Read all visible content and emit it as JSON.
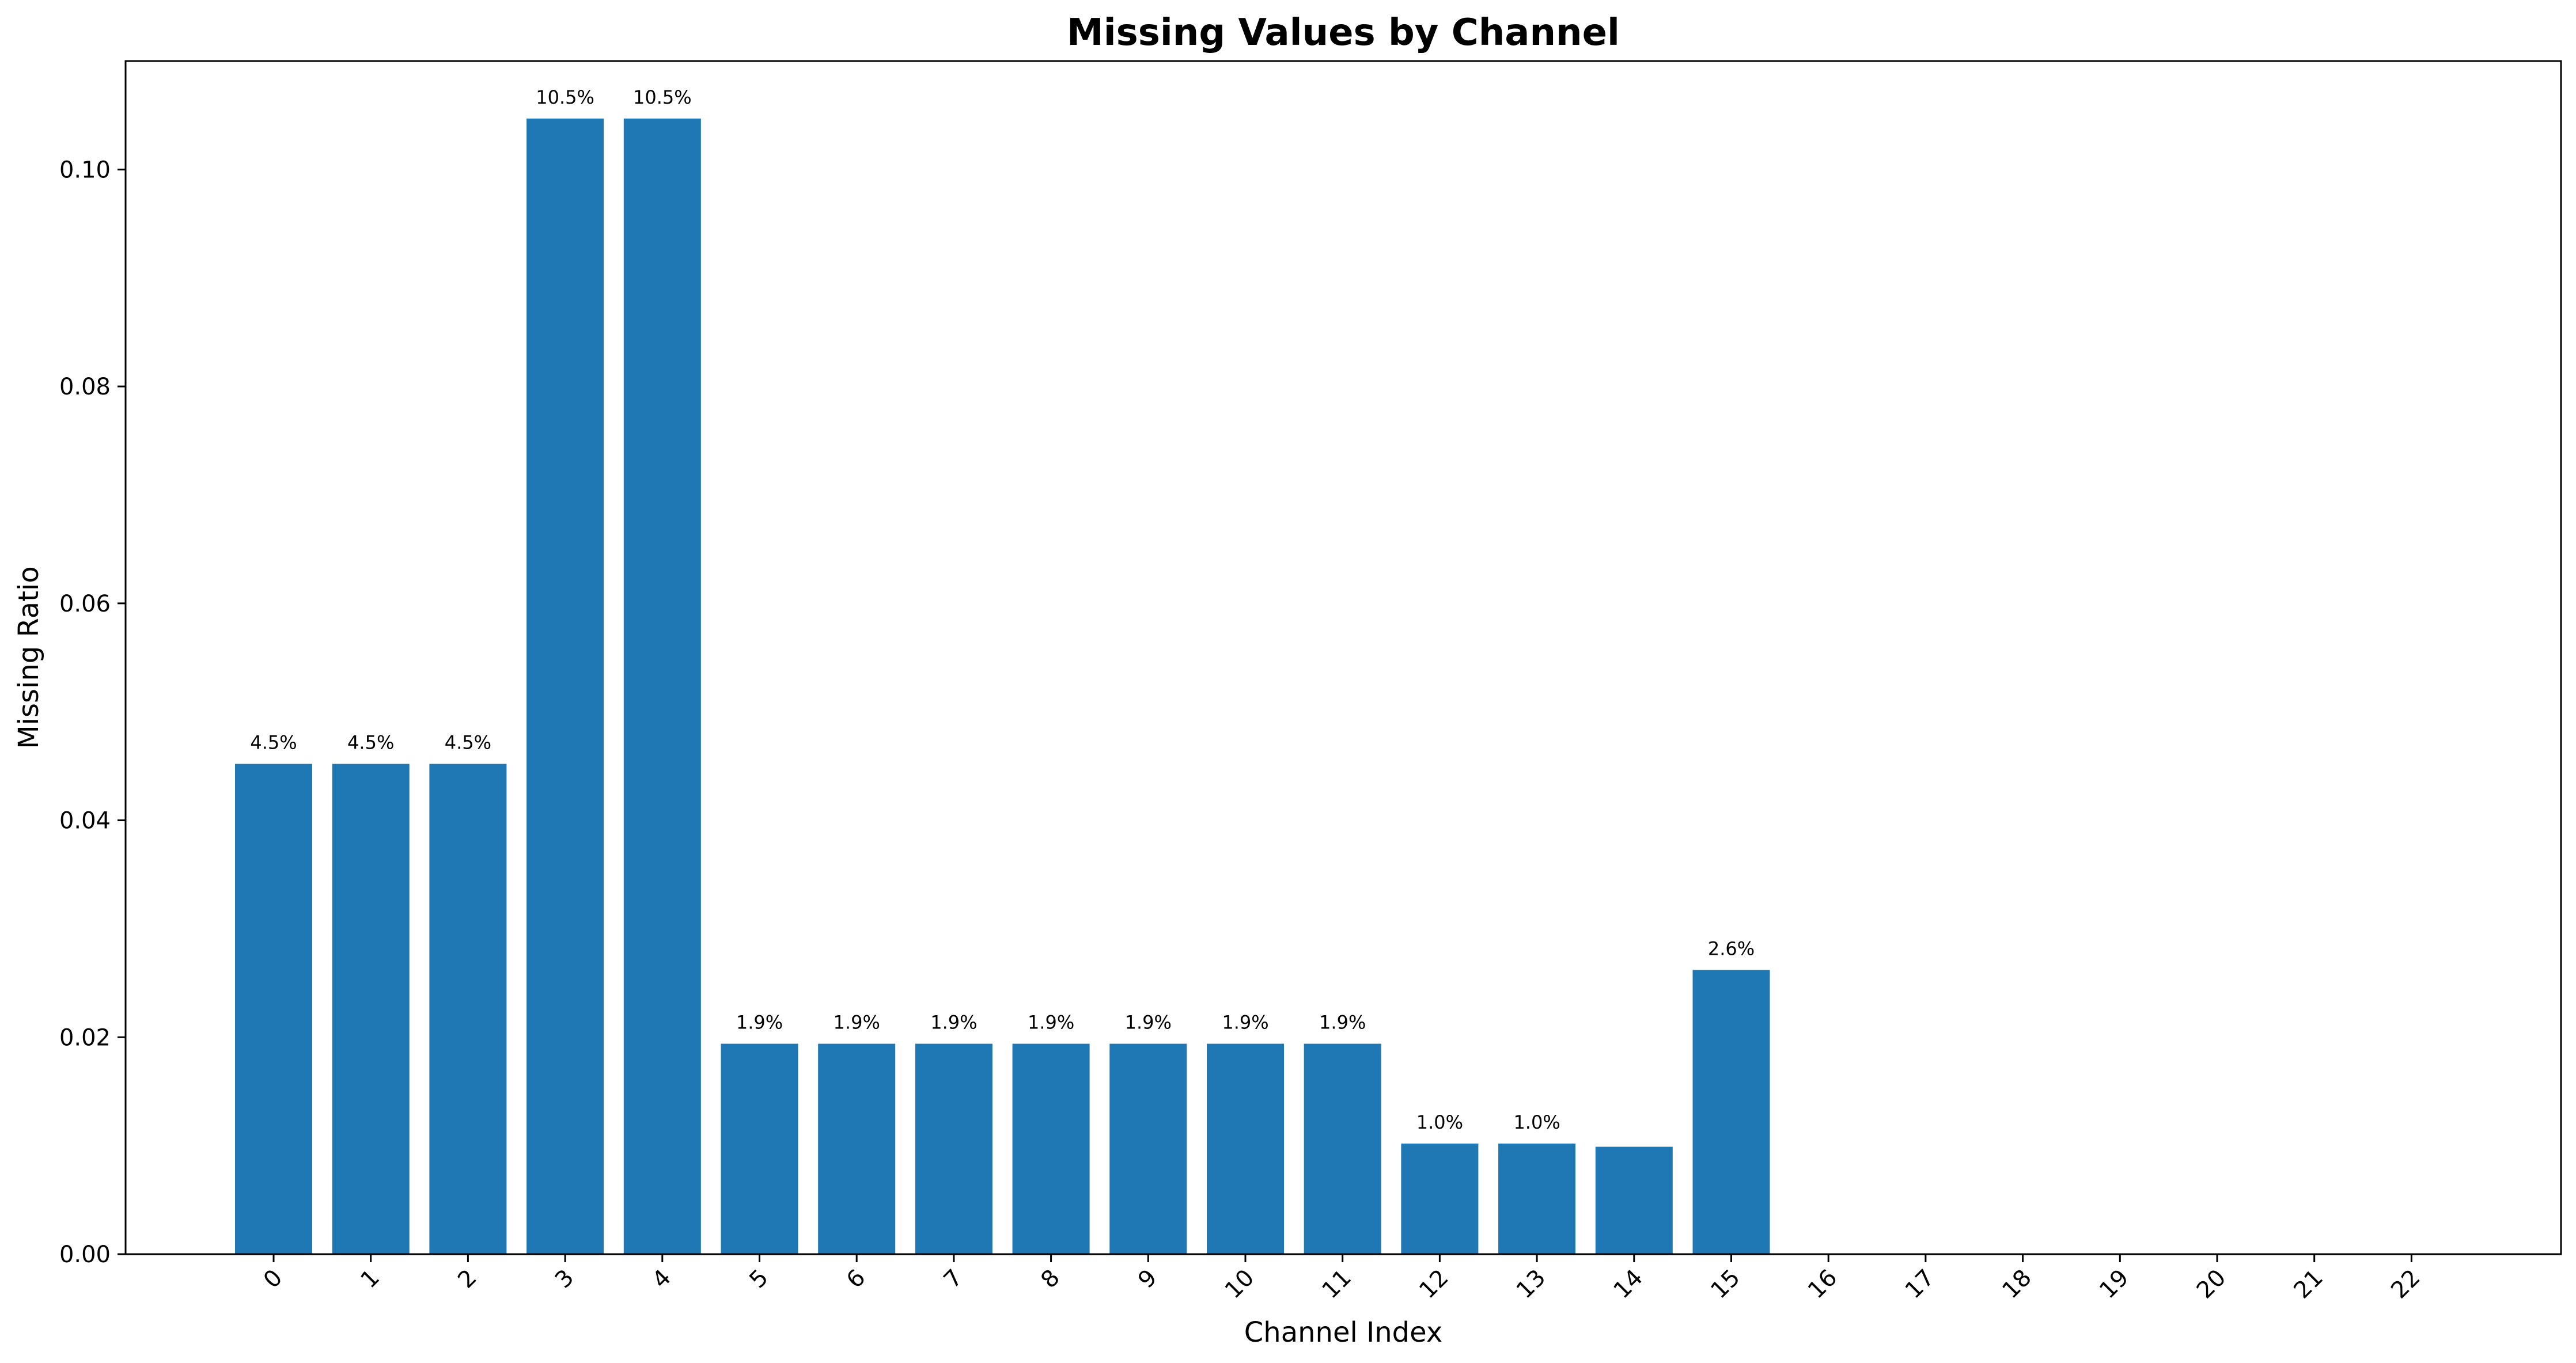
{
  "chart_data": {
    "type": "bar",
    "title": "Missing Values by Channel",
    "xlabel": "Channel Index",
    "ylabel": "Missing Ratio",
    "categories": [
      "0",
      "1",
      "2",
      "3",
      "4",
      "5",
      "6",
      "7",
      "8",
      "9",
      "10",
      "11",
      "12",
      "13",
      "14",
      "15",
      "16",
      "17",
      "18",
      "19",
      "20",
      "21",
      "22"
    ],
    "values": [
      0.0452,
      0.0452,
      0.0452,
      0.1047,
      0.1047,
      0.0194,
      0.0194,
      0.0194,
      0.0194,
      0.0194,
      0.0194,
      0.0194,
      0.0102,
      0.0102,
      0.0099,
      0.0262,
      0,
      0,
      0,
      0,
      0,
      0,
      0
    ],
    "data_labels": [
      "4.5%",
      "4.5%",
      "4.5%",
      "10.5%",
      "10.5%",
      "1.9%",
      "1.9%",
      "1.9%",
      "1.9%",
      "1.9%",
      "1.9%",
      "1.9%",
      "1.0%",
      "1.0%",
      "",
      "2.6%",
      "",
      "",
      "",
      "",
      "",
      "",
      ""
    ],
    "ylim": [
      0,
      0.11
    ],
    "yticks": [
      0.0,
      0.02,
      0.04,
      0.06,
      0.08,
      0.1
    ],
    "ytick_labels": [
      "0.00",
      "0.02",
      "0.04",
      "0.06",
      "0.08",
      "0.10"
    ],
    "xtick_rotation": 45,
    "grid": false,
    "legend": false,
    "bar_color": "#1f77b4"
  }
}
